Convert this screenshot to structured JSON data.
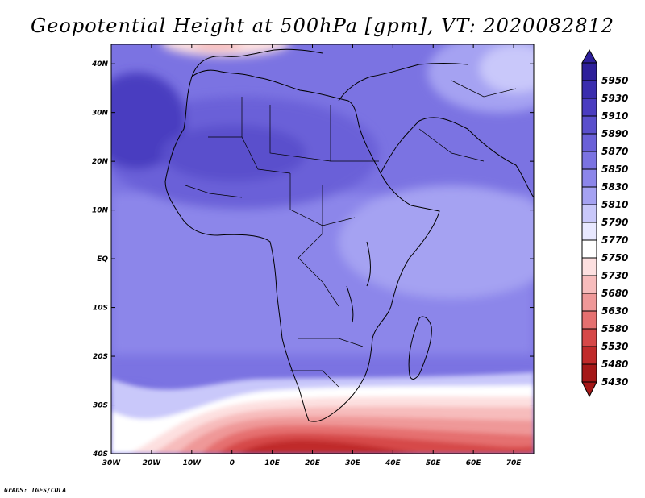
{
  "title": "Geopotential Height at 500hPa [gpm], VT: 2020082812",
  "footer": "GrADS: IGES/COLA",
  "map": {
    "lon_labels": [
      "30W",
      "20W",
      "10W",
      "0",
      "10E",
      "20E",
      "30E",
      "40E",
      "50E",
      "60E",
      "70E"
    ],
    "lat_labels": [
      "40N",
      "30N",
      "20N",
      "10N",
      "EQ",
      "10S",
      "20S",
      "30S",
      "40S"
    ],
    "lon_range": [
      -30,
      75
    ],
    "lat_range": [
      -40,
      44
    ]
  },
  "colorbar": {
    "levels": [
      "5950",
      "5930",
      "5910",
      "5890",
      "5870",
      "5850",
      "5830",
      "5810",
      "5790",
      "5770",
      "5750",
      "5730",
      "5680",
      "5630",
      "5580",
      "5530",
      "5480",
      "5430"
    ],
    "colors": [
      "#2d1f9a",
      "#3a2dae",
      "#4a3cc0",
      "#5a4fcc",
      "#6a60d8",
      "#7b73e2",
      "#8c86ea",
      "#a5a2f2",
      "#c9c8fa",
      "#e8e8ff",
      "#ffffff",
      "#fde0e0",
      "#f7bcbc",
      "#ef9898",
      "#e57070",
      "#d64848",
      "#c02a2a",
      "#a51818"
    ]
  }
}
